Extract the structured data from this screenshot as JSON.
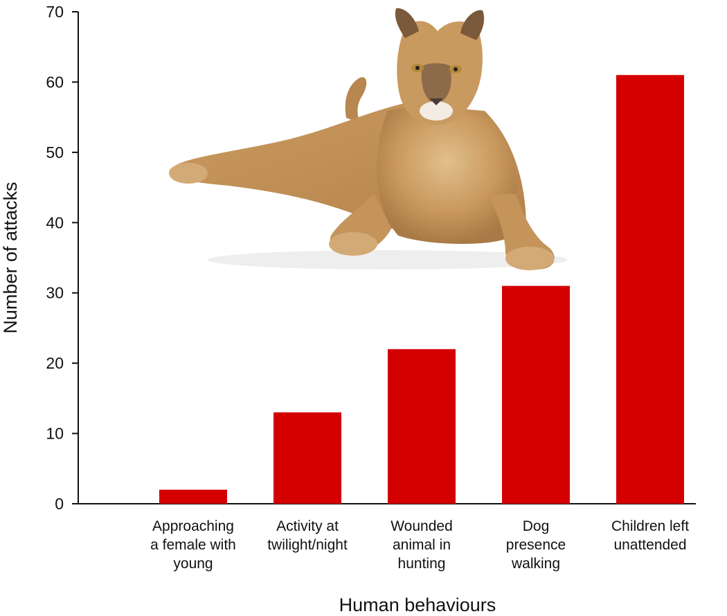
{
  "chart_data": {
    "type": "bar",
    "categories": [
      [
        "Approaching",
        "a female with",
        "young"
      ],
      [
        "Activity at",
        "twilight/night"
      ],
      [
        "Wounded",
        "animal in",
        "hunting"
      ],
      [
        "Dog",
        "presence",
        "walking"
      ],
      [
        "Children left",
        "unattended"
      ]
    ],
    "values": [
      2,
      13,
      22,
      31,
      61
    ],
    "xlabel": "Human behaviours",
    "ylabel": "Number of attacks",
    "ylim": [
      0,
      70
    ],
    "yticks": [
      0,
      10,
      20,
      30,
      40,
      50,
      60,
      70
    ],
    "bar_color": "#d40000",
    "grid": false,
    "illustration": "cougar-image"
  }
}
